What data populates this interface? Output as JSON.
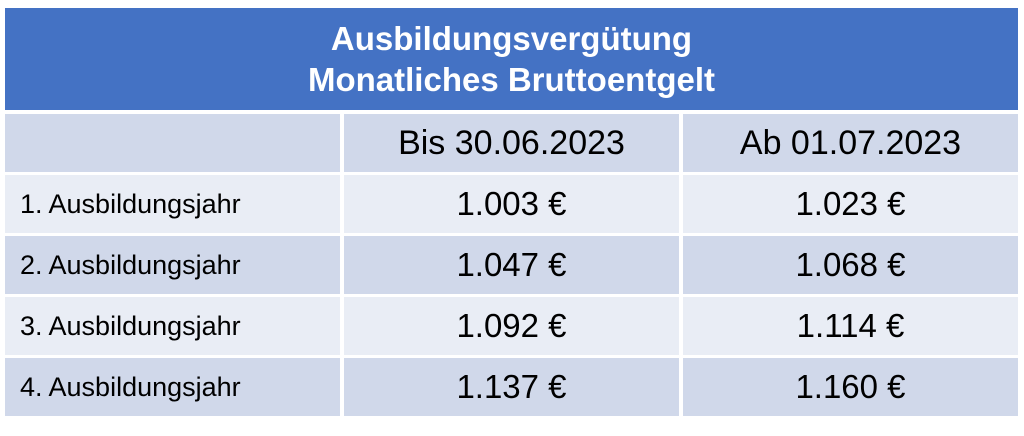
{
  "header": {
    "title_line1": "Ausbildungsvergütung",
    "title_line2": "Monatliches Bruttoentgelt"
  },
  "columns": [
    "",
    "Bis 30.06.2023",
    "Ab 01.07.2023"
  ],
  "rows": [
    {
      "label": "1. Ausbildungsjahr",
      "before": "1.003 €",
      "after": "1.023 €"
    },
    {
      "label": "2. Ausbildungsjahr",
      "before": "1.047 €",
      "after": "1.068 €"
    },
    {
      "label": "3. Ausbildungsjahr",
      "before": "1.092 €",
      "after": "1.114 €"
    },
    {
      "label": "4. Ausbildungsjahr",
      "before": "1.137 €",
      "after": "1.160 €"
    }
  ],
  "colors": {
    "header_bg": "#4472c4",
    "band_dark": "#d0d8ea",
    "band_light": "#e9edf5"
  }
}
